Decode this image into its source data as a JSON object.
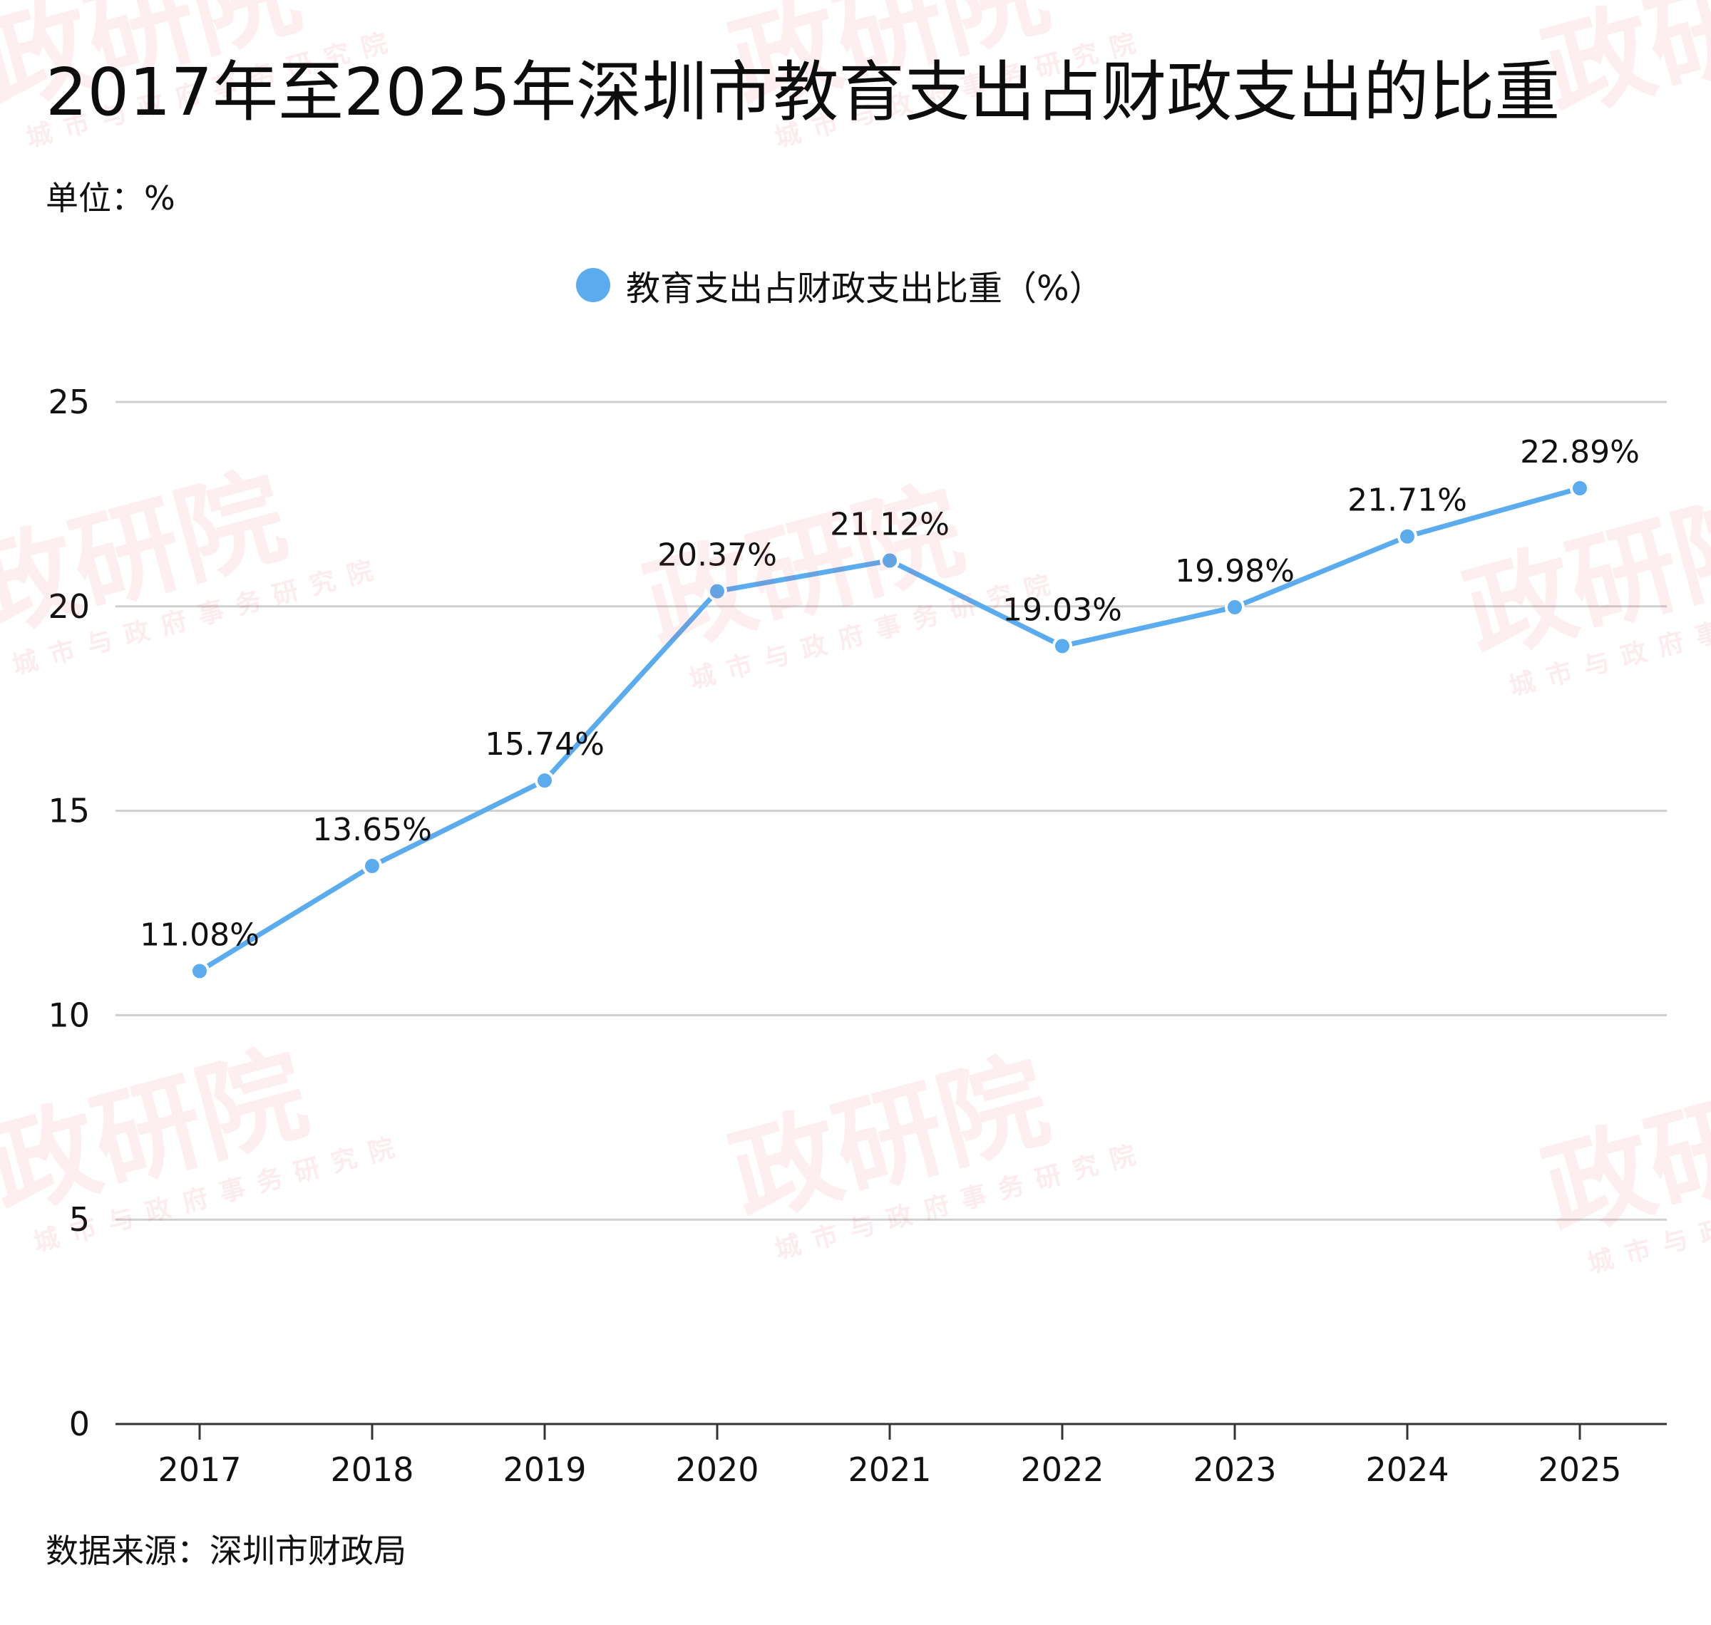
{
  "title": "2017年至2025年深圳市教育支出占财政支出的比重",
  "unit_label": "单位：%",
  "source": "数据来源：深圳市财政局",
  "watermark": {
    "main": "政研院",
    "sub": "城市与政府事务研究院"
  },
  "chart_data": {
    "type": "line",
    "title": "2017年至2025年深圳市教育支出占财政支出的比重",
    "xlabel": "",
    "ylabel": "",
    "categories": [
      "2017",
      "2018",
      "2019",
      "2020",
      "2021",
      "2022",
      "2023",
      "2024",
      "2025"
    ],
    "series": [
      {
        "name": "教育支出占财政支出比重（%）",
        "color": "#5aacee",
        "values": [
          11.08,
          13.65,
          15.74,
          20.37,
          21.12,
          19.03,
          19.98,
          21.71,
          22.89
        ],
        "data_labels": [
          "11.08%",
          "13.65%",
          "15.74%",
          "20.37%",
          "21.12%",
          "19.03%",
          "19.98%",
          "21.71%",
          "22.89%"
        ]
      }
    ],
    "ylim": [
      0,
      25
    ],
    "yticks": [
      0,
      5,
      10,
      15,
      20,
      25
    ],
    "grid": true,
    "legend": "top-center"
  }
}
